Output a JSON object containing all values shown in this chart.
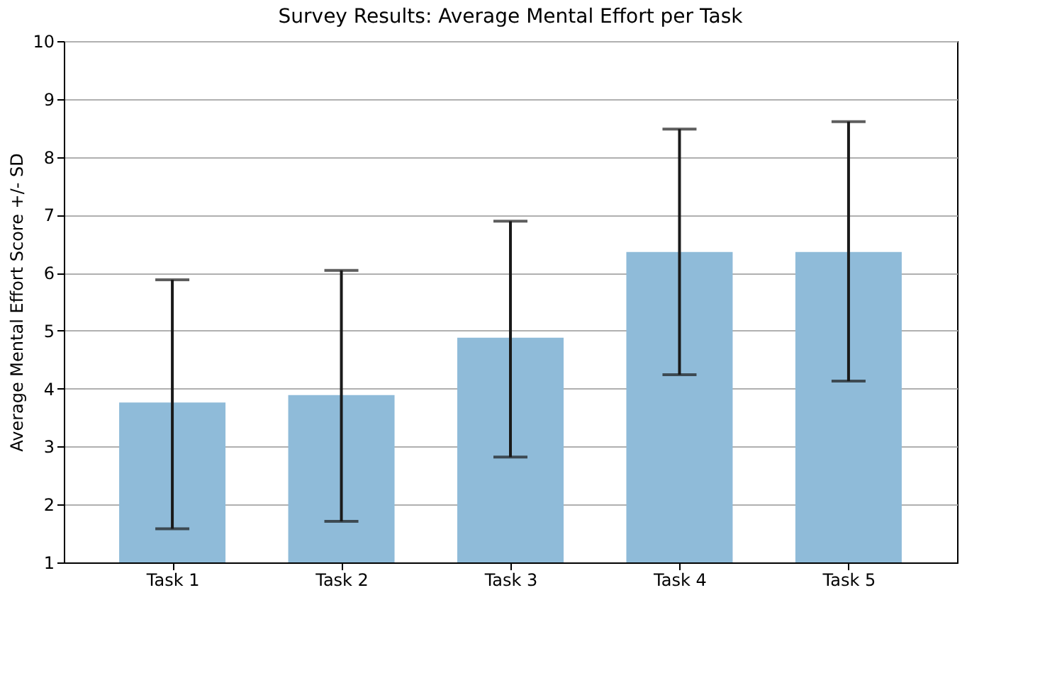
{
  "chart_data": {
    "type": "bar",
    "title": "Survey Results: Average Mental Effort per Task",
    "ylabel": "Average Mental Effort Score +/- SD",
    "categories": [
      "Task 1",
      "Task 2",
      "Task 3",
      "Task 4",
      "Task 5"
    ],
    "values": [
      3.76,
      3.89,
      4.88,
      6.36,
      6.36
    ],
    "errors": [
      [
        1.58,
        5.88
      ],
      [
        1.71,
        6.04
      ],
      [
        2.82,
        6.89
      ],
      [
        4.24,
        8.48
      ],
      [
        4.13,
        8.61
      ]
    ],
    "color": "#8fbbd9",
    "ylim": [
      1,
      10
    ],
    "yticks": [
      1,
      2,
      3,
      4,
      5,
      6,
      7,
      8,
      9,
      10
    ],
    "grid": "y"
  }
}
